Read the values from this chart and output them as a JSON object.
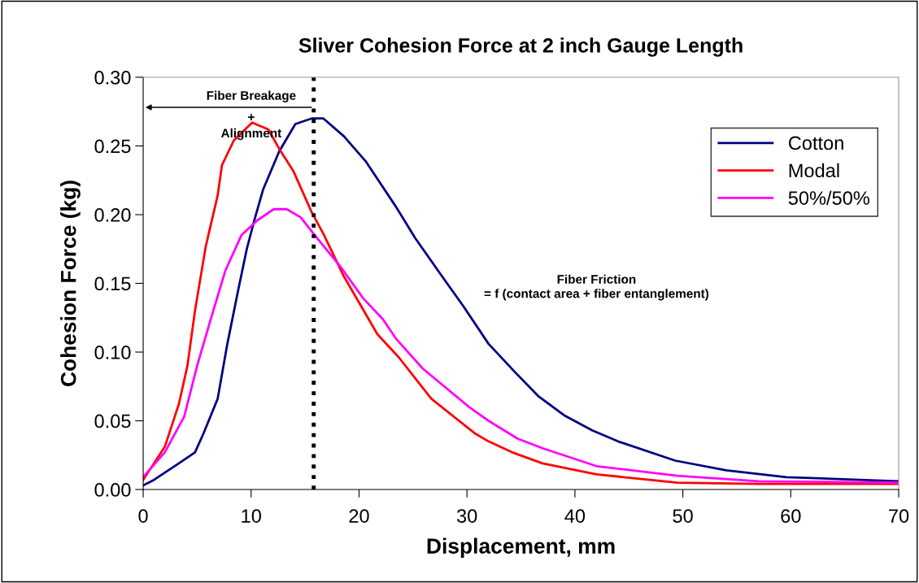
{
  "chart_data": {
    "type": "line",
    "title": "Sliver Cohesion Force at 2 inch Gauge Length",
    "xlabel": "Displacement, mm",
    "ylabel": "Cohesion Force (kg)",
    "xlim": [
      0,
      70
    ],
    "xticks": [
      0,
      10,
      20,
      30,
      40,
      50,
      60,
      70
    ],
    "ylim": [
      0,
      0.3
    ],
    "yticks": [
      {
        "value": 0,
        "label": "0.00"
      },
      {
        "value": 0.05,
        "label": "0.05"
      },
      {
        "value": 0.1,
        "label": "0.10"
      },
      {
        "value": 0.15,
        "label": "0.15"
      },
      {
        "value": 0.2,
        "label": "0.20"
      },
      {
        "value": 0.25,
        "label": "0.25"
      },
      {
        "value": 0.3,
        "label": "0.30"
      }
    ],
    "grid": false,
    "legend": "top right",
    "marker": "none",
    "line_style": "solid",
    "series": [
      {
        "name": "Cotton",
        "color": "#000080",
        "x": [
          0,
          1,
          3.3,
          4.8,
          5.6,
          6.9,
          7.8,
          8.8,
          9.6,
          10.3,
          11.1,
          12.6,
          14.1,
          15.6,
          16.7,
          18.6,
          20.6,
          23.4,
          25.2,
          27.7,
          29.7,
          32.0,
          34.5,
          36.6,
          39.0,
          41.6,
          44.0,
          49.3,
          54.0,
          59.6,
          70
        ],
        "values": [
          0.003,
          0.007,
          0.019,
          0.027,
          0.041,
          0.066,
          0.106,
          0.145,
          0.175,
          0.196,
          0.218,
          0.246,
          0.266,
          0.27,
          0.27,
          0.257,
          0.239,
          0.206,
          0.183,
          0.155,
          0.133,
          0.106,
          0.085,
          0.068,
          0.054,
          0.043,
          0.035,
          0.021,
          0.014,
          0.009,
          0.006
        ]
      },
      {
        "name": "Modal",
        "color": "#ff0000",
        "x": [
          0,
          2.0,
          3.3,
          4.1,
          4.8,
          5.8,
          6.9,
          7.3,
          8.4,
          10.1,
          11.6,
          12.6,
          13.9,
          15.6,
          16.7,
          18.6,
          21.7,
          23.7,
          26.7,
          30.7,
          32.0,
          34.2,
          37.0,
          42.0,
          49.5,
          57.0,
          70
        ],
        "values": [
          0.007,
          0.031,
          0.062,
          0.09,
          0.13,
          0.177,
          0.214,
          0.236,
          0.254,
          0.267,
          0.262,
          0.248,
          0.232,
          0.202,
          0.186,
          0.155,
          0.113,
          0.096,
          0.066,
          0.041,
          0.035,
          0.027,
          0.019,
          0.011,
          0.005,
          0.004,
          0.004
        ]
      },
      {
        "name": "50%/50%",
        "color": "#ff00ff",
        "x": [
          0,
          2.0,
          3.8,
          5.0,
          6.3,
          7.6,
          9.1,
          10.6,
          12.1,
          13.3,
          14.6,
          15.9,
          18.2,
          20.4,
          22.2,
          23.4,
          25.9,
          30.2,
          32.0,
          34.7,
          37.0,
          42.0,
          49.5,
          57.0,
          70
        ],
        "values": [
          0.009,
          0.027,
          0.053,
          0.09,
          0.125,
          0.159,
          0.185,
          0.196,
          0.204,
          0.204,
          0.198,
          0.185,
          0.163,
          0.139,
          0.124,
          0.11,
          0.088,
          0.06,
          0.05,
          0.037,
          0.03,
          0.017,
          0.01,
          0.006,
          0.005
        ]
      }
    ],
    "ref_lines": [
      {
        "axis": "x",
        "value": 15.8,
        "color": "#000000",
        "line_style": "dotted"
      }
    ],
    "annotations": [
      "Fiber Breakage\n+\nAlignment",
      "Fiber Friction\n= f (contact area + fiber entanglement)"
    ]
  }
}
